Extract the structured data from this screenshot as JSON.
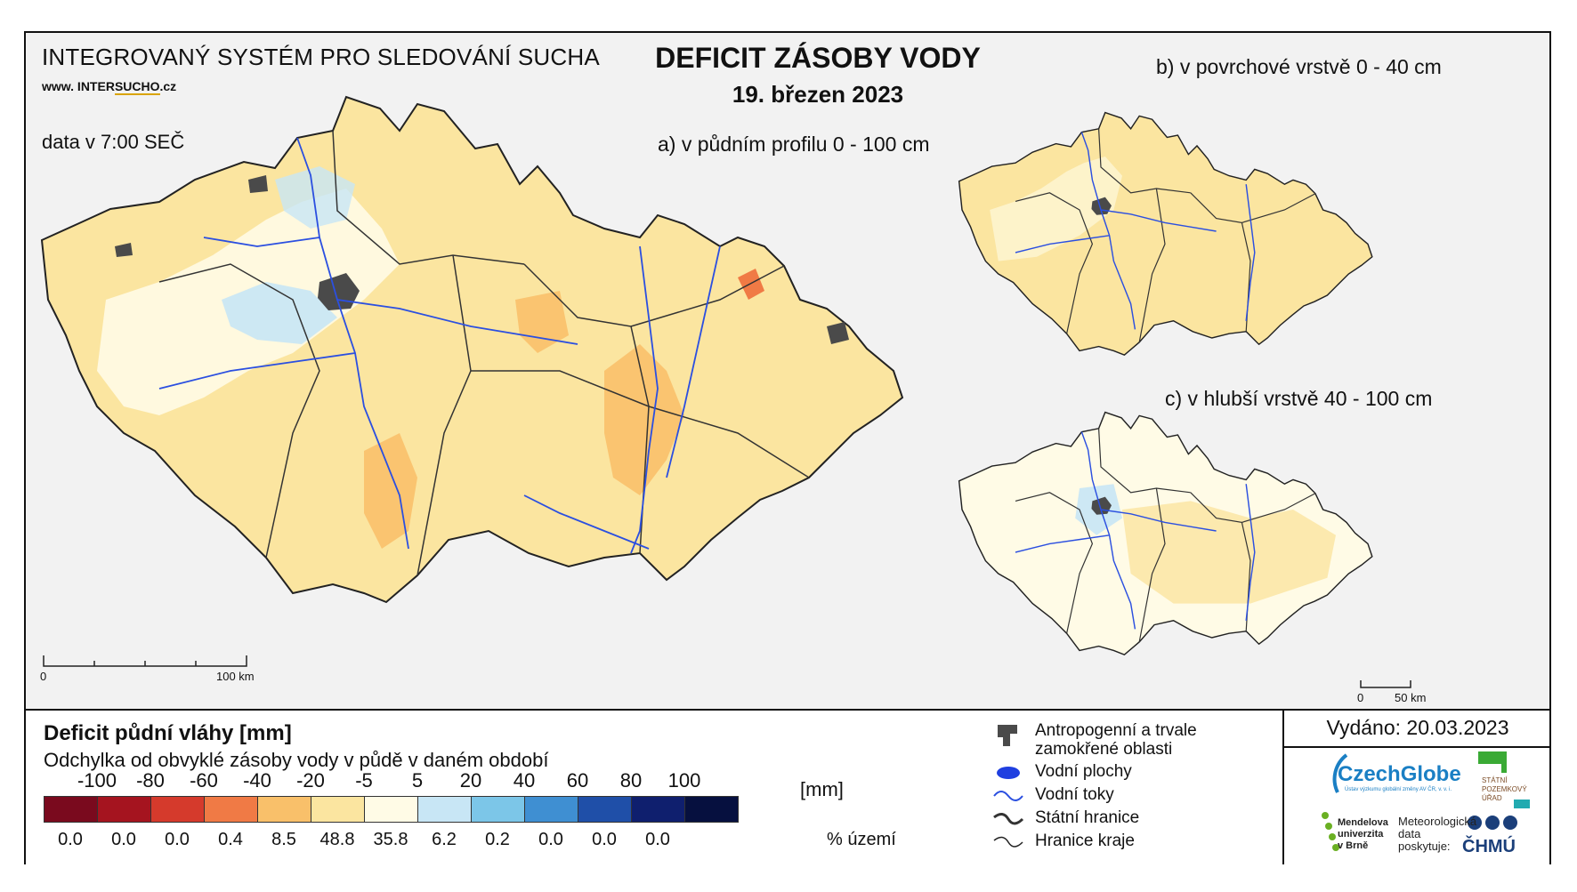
{
  "header": {
    "system_title": "INTEGROVANÝ SYSTÉM PRO SLEDOVÁNÍ SUCHA",
    "website_prefix": "www. INTER",
    "website_highlight": "SUCHO",
    "website_suffix": ".cz",
    "data_time": "data v 7:00 SEČ",
    "main_title": "DEFICIT ZÁSOBY VODY",
    "date": "19. březen 2023"
  },
  "maps": {
    "a_label": "a) v půdním profilu 0 - 100 cm",
    "b_label": "b) v povrchové vrstvě 0 - 40 cm",
    "c_label": "c) v hlubší vrstvě 40 - 100 cm",
    "scale_main": {
      "start": "0",
      "end": "100 km"
    },
    "scale_small": {
      "start": "0",
      "end": "50 km"
    }
  },
  "legend": {
    "title": "Deficit půdní vláhy  [mm]",
    "subtitle": "Odchylka od obvyklé zásoby vody v půdě v daném období",
    "unit": "[mm]",
    "pct_label": "% území",
    "breaks": [
      "-100",
      "-80",
      "-60",
      "-40",
      "-20",
      "-5",
      "5",
      "20",
      "40",
      "60",
      "80",
      "100"
    ],
    "classes": [
      {
        "color": "#7a0a1e",
        "pct": "0.0"
      },
      {
        "color": "#a5141f",
        "pct": "0.0"
      },
      {
        "color": "#d53a2c",
        "pct": "0.0"
      },
      {
        "color": "#f07a45",
        "pct": "0.4"
      },
      {
        "color": "#f9c06a",
        "pct": "8.5"
      },
      {
        "color": "#fbe5a0",
        "pct": "48.8"
      },
      {
        "color": "#fffbe6",
        "pct": "35.8"
      },
      {
        "color": "#c8e6f5",
        "pct": "6.2"
      },
      {
        "color": "#7cc6e8",
        "pct": "0.2"
      },
      {
        "color": "#3f8fd2",
        "pct": "0.0"
      },
      {
        "color": "#1f4fa8",
        "pct": "0.0"
      },
      {
        "color": "#0f1f6e",
        "pct": "0.0"
      },
      {
        "color": "#06103f",
        "pct": ""
      }
    ]
  },
  "symbols": {
    "urban": "Antropogenní a trvale zamokřené oblasti",
    "water_bodies": "Vodní plochy",
    "rivers": "Vodní toky",
    "state_border": "Státní hranice",
    "region_border": "Hranice kraje"
  },
  "issued": {
    "text": "Vydáno: 20.03.2023",
    "czechglobe": "CzechGlobe",
    "czechglobe_sub": "Ústav výzkumu globální změny AV ČR, v. v. i.",
    "spu": "STÁTNÍ POZEMKOVÝ ÚŘAD",
    "mendelu": "Mendelova univerzita v Brně",
    "met_data": "Meteorologická data poskytuje:",
    "chmu": "ČHMÚ"
  },
  "colors": {
    "border": "#222222",
    "river": "#2b4fe0",
    "urban": "#4a4a4a",
    "dominant": "#fbe5a0"
  }
}
